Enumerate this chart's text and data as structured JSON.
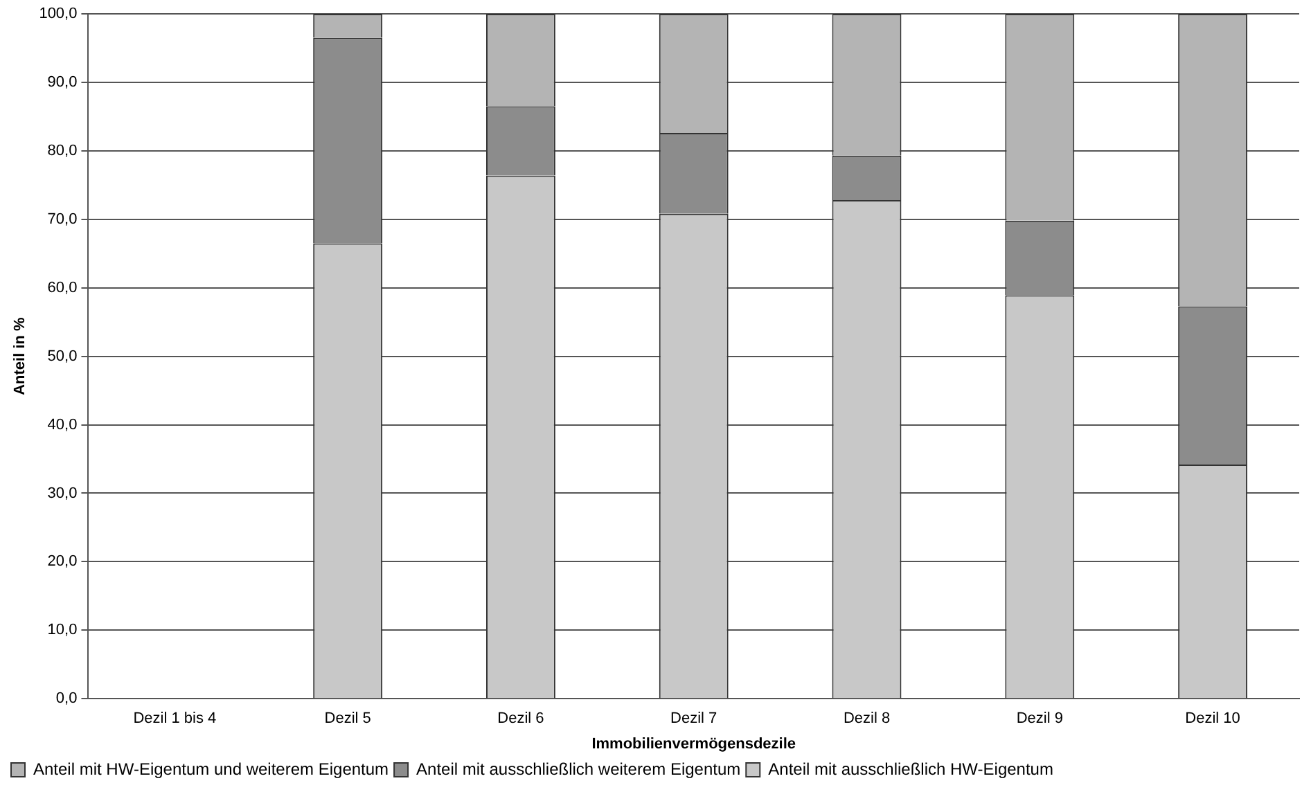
{
  "chart_data": {
    "type": "bar",
    "stacked": true,
    "xlabel": "Immobilienvermögensdezile",
    "ylabel": "Anteil in %",
    "categories": [
      "Dezil 1 bis 4",
      "Dezil 5",
      "Dezil 6",
      "Dezil 7",
      "Dezil 8",
      "Dezil 9",
      "Dezil 10"
    ],
    "series": [
      {
        "name": "Anteil mit ausschließlich HW-Eigentum",
        "color": "#c8c8c8",
        "values": [
          null,
          66.5,
          76.4,
          70.8,
          72.8,
          58.9,
          34.2
        ]
      },
      {
        "name": "Anteil mit ausschließlich weiterem Eigentum",
        "color": "#8c8c8c",
        "values": [
          null,
          30.0,
          10.1,
          11.8,
          6.5,
          10.9,
          23.1
        ]
      },
      {
        "name": "Anteil mit HW-Eigentum und weiterem Eigentum",
        "color": "#b4b4b4",
        "values": [
          null,
          3.5,
          13.5,
          17.4,
          20.7,
          30.2,
          42.7
        ]
      }
    ],
    "ylim": [
      0,
      100
    ],
    "yticks": [
      {
        "value": 0,
        "label": "0,0"
      },
      {
        "value": 10,
        "label": "10,0"
      },
      {
        "value": 20,
        "label": "20,0"
      },
      {
        "value": 30,
        "label": "30,0"
      },
      {
        "value": 40,
        "label": "40,0"
      },
      {
        "value": 50,
        "label": "50,0"
      },
      {
        "value": 60,
        "label": "60,0"
      },
      {
        "value": 70,
        "label": "70,0"
      },
      {
        "value": 80,
        "label": "80,0"
      },
      {
        "value": 90,
        "label": "90,0"
      },
      {
        "value": 100,
        "label": "100,0"
      }
    ],
    "grid": "y",
    "legend": "bottom left"
  }
}
